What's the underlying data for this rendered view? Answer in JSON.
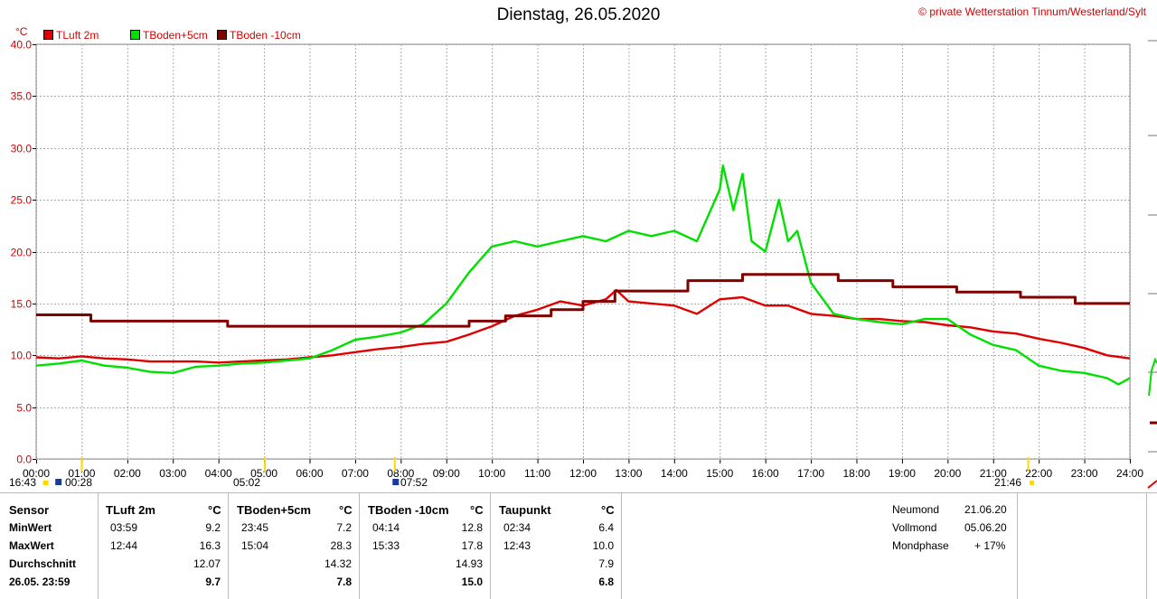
{
  "header": {
    "title": "Dienstag, 26.05.2020",
    "copyright_symbol": "©",
    "copyright": "private Wetterstation Tinnum/Westerland/Sylt",
    "unit": "°C"
  },
  "legend": [
    {
      "label": "TLuft 2m",
      "color": "#e00000"
    },
    {
      "label": "TBoden+5cm",
      "color": "#00e000"
    },
    {
      "label": "TBoden -10cm",
      "color": "#800000"
    }
  ],
  "sun_labels": {
    "a": "16:43",
    "b": "00:28",
    "c": "05:02",
    "d": "07:52",
    "e": "21:46"
  },
  "chart_data": {
    "type": "line",
    "xlim": [
      0,
      24
    ],
    "ylim": [
      0,
      40
    ],
    "x_ticks": [
      "00:00",
      "01:00",
      "02:00",
      "03:00",
      "04:00",
      "05:00",
      "06:00",
      "07:00",
      "08:00",
      "09:00",
      "10:00",
      "11:00",
      "12:00",
      "13:00",
      "14:00",
      "15:00",
      "16:00",
      "17:00",
      "18:00",
      "19:00",
      "20:00",
      "21:00",
      "22:00",
      "23:00",
      "24:00"
    ],
    "y_ticks": [
      "0.0",
      "5.0",
      "10.0",
      "15.0",
      "20.0",
      "25.0",
      "30.0",
      "35.0",
      "40.0"
    ],
    "grid": true,
    "series": [
      {
        "name": "TLuft 2m",
        "color": "#e00000",
        "x": [
          0,
          0.5,
          1,
          1.5,
          2,
          2.5,
          3,
          3.5,
          4,
          4.5,
          5,
          5.5,
          6,
          6.5,
          7,
          7.5,
          8,
          8.5,
          9,
          9.5,
          10,
          10.5,
          11,
          11.5,
          12,
          12.5,
          12.73,
          13,
          13.5,
          14,
          14.5,
          15,
          15.5,
          16,
          16.5,
          17,
          17.5,
          18,
          18.5,
          19,
          19.5,
          20,
          20.5,
          21,
          21.5,
          22,
          22.5,
          23,
          23.5,
          24
        ],
        "y": [
          9.8,
          9.7,
          9.9,
          9.7,
          9.6,
          9.4,
          9.4,
          9.4,
          9.3,
          9.4,
          9.5,
          9.6,
          9.8,
          10.0,
          10.3,
          10.6,
          10.8,
          11.1,
          11.3,
          12.0,
          12.8,
          13.8,
          14.4,
          15.2,
          14.8,
          15.4,
          16.3,
          15.2,
          15.0,
          14.8,
          14.0,
          15.4,
          15.6,
          14.8,
          14.8,
          14.0,
          13.8,
          13.5,
          13.5,
          13.3,
          13.2,
          12.9,
          12.7,
          12.3,
          12.1,
          11.6,
          11.2,
          10.7,
          10.0,
          9.7
        ]
      },
      {
        "name": "TBoden+5cm",
        "color": "#00e000",
        "x": [
          0,
          0.5,
          1,
          1.5,
          2,
          2.5,
          3,
          3.5,
          4,
          4.5,
          5,
          5.5,
          6,
          6.5,
          7,
          7.5,
          8,
          8.5,
          9,
          9.5,
          10,
          10.5,
          11,
          11.5,
          12,
          12.5,
          13,
          13.5,
          14,
          14.5,
          15,
          15.07,
          15.3,
          15.5,
          15.7,
          16,
          16.3,
          16.5,
          16.7,
          17,
          17.5,
          18,
          18.5,
          19,
          19.5,
          20,
          20.5,
          21,
          21.5,
          22,
          22.5,
          23,
          23.5,
          23.75,
          24
        ],
        "y": [
          9.0,
          9.2,
          9.5,
          9.0,
          8.8,
          8.4,
          8.3,
          8.9,
          9.0,
          9.2,
          9.3,
          9.5,
          9.7,
          10.5,
          11.5,
          11.8,
          12.2,
          13.0,
          15.0,
          18.0,
          20.5,
          21.0,
          20.5,
          21.0,
          21.5,
          21.0,
          22.0,
          21.5,
          22.0,
          21.0,
          26.0,
          28.3,
          24.0,
          27.5,
          21.0,
          20.0,
          25.0,
          21.0,
          22.0,
          17.0,
          14.0,
          13.5,
          13.2,
          13.0,
          13.5,
          13.5,
          12.0,
          11.0,
          10.5,
          9.0,
          8.5,
          8.3,
          7.8,
          7.2,
          7.8
        ]
      },
      {
        "name": "TBoden -10cm",
        "color": "#800000",
        "x": [
          0,
          1.2,
          1.2,
          4.2,
          4.2,
          9.5,
          9.5,
          10.3,
          10.3,
          11.3,
          11.3,
          12.0,
          12.0,
          12.7,
          12.7,
          14.3,
          14.3,
          15.5,
          15.5,
          17.6,
          17.6,
          18.8,
          18.8,
          20.2,
          20.2,
          21.6,
          21.6,
          22.8,
          22.8,
          24
        ],
        "y": [
          13.9,
          13.9,
          13.3,
          13.3,
          12.8,
          12.8,
          13.3,
          13.3,
          13.8,
          13.8,
          14.4,
          14.4,
          15.2,
          15.2,
          16.2,
          16.2,
          17.2,
          17.2,
          17.8,
          17.8,
          17.2,
          17.2,
          16.6,
          16.6,
          16.1,
          16.1,
          15.6,
          15.6,
          15.0,
          15.0
        ]
      }
    ]
  },
  "table": {
    "sensor_header": "Sensor",
    "row_labels": [
      "MinWert",
      "MaxWert",
      "Durchschnitt",
      "26.05. 23:59"
    ],
    "columns": [
      {
        "name": "TLuft 2m",
        "unit": "°C",
        "min_time": "03:59",
        "min": "9.2",
        "max_time": "12:44",
        "max": "16.3",
        "avg": "12.07",
        "current": "9.7"
      },
      {
        "name": "TBoden+5cm",
        "unit": "°C",
        "min_time": "23:45",
        "min": "7.2",
        "max_time": "15:04",
        "max": "28.3",
        "avg": "14.32",
        "current": "7.8"
      },
      {
        "name": "TBoden -10cm",
        "unit": "°C",
        "min_time": "04:14",
        "min": "12.8",
        "max_time": "15:33",
        "max": "17.8",
        "avg": "14.93",
        "current": "15.0"
      },
      {
        "name": "Taupunkt",
        "unit": "°C",
        "min_time": "02:34",
        "min": "6.4",
        "max_time": "12:43",
        "max": "10.0",
        "avg": "7.9",
        "current": "6.8"
      }
    ],
    "moon": [
      {
        "label": "Neumond",
        "value": "21.06.20"
      },
      {
        "label": "Vollmond",
        "value": "05.06.20"
      },
      {
        "label": "Mondphase",
        "value": "+ 17%"
      }
    ]
  }
}
